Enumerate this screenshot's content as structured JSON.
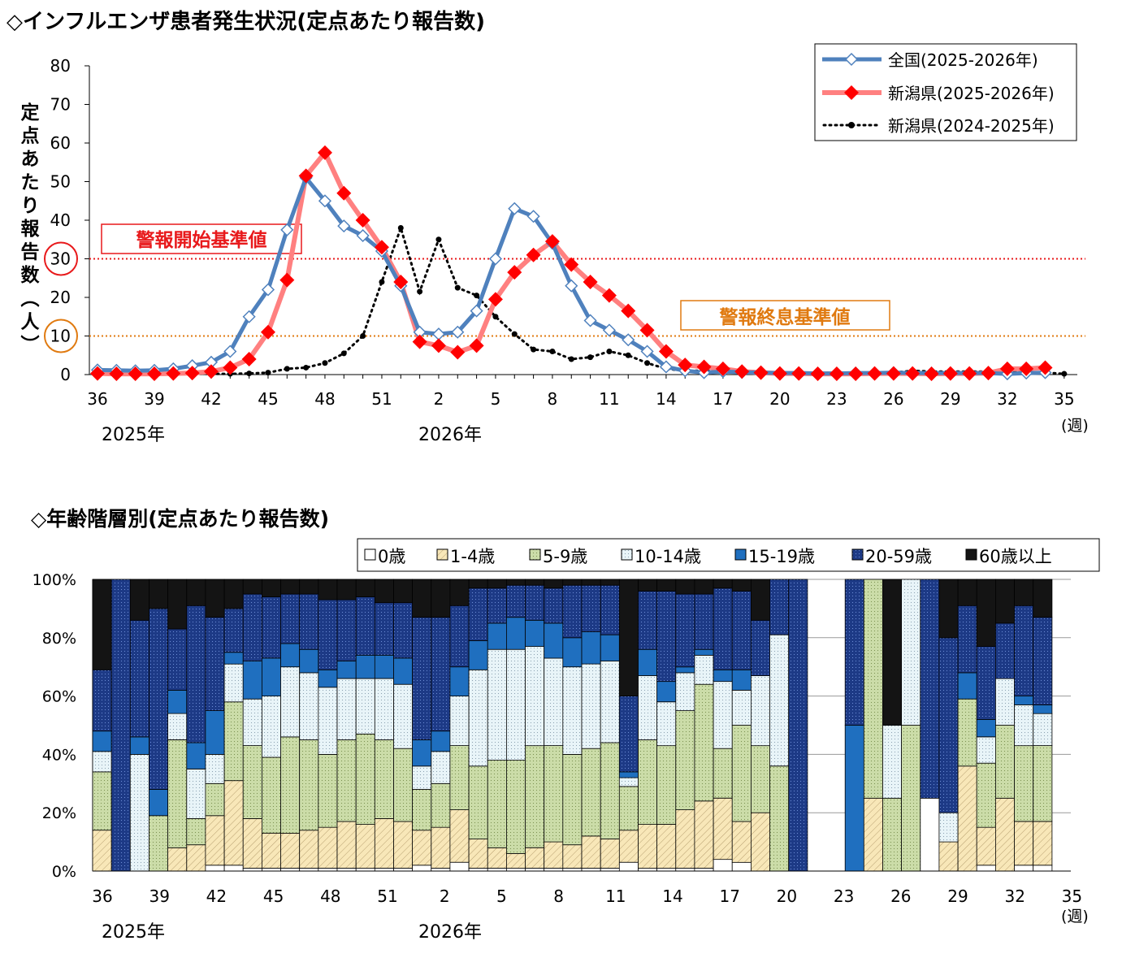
{
  "titles": {
    "top": "◇インフルエンザ患者発生状況(定点あたり報告数)",
    "bottom": "◇年齢階層別(定点あたり報告数)"
  },
  "chart_data": [
    {
      "type": "line",
      "ylabel": "定点あたり報告数(人)",
      "xunit": "(週)",
      "ylim": [
        0,
        80
      ],
      "yticks": [
        0,
        10,
        20,
        30,
        40,
        50,
        60,
        70,
        80
      ],
      "xtick_labels": [
        "36",
        "39",
        "42",
        "45",
        "48",
        "51",
        "2",
        "5",
        "8",
        "11",
        "14",
        "17",
        "20",
        "23",
        "26",
        "29",
        "32",
        "35"
      ],
      "year_labels": [
        "2025年",
        "2026年"
      ],
      "weeks": [
        "36",
        "37",
        "38",
        "39",
        "40",
        "41",
        "42",
        "43",
        "44",
        "45",
        "46",
        "47",
        "48",
        "49",
        "50",
        "51",
        "52",
        "1",
        "2",
        "3",
        "4",
        "5",
        "6",
        "7",
        "8",
        "9",
        "10",
        "11",
        "12",
        "13",
        "14",
        "15",
        "16",
        "17",
        "18",
        "19",
        "20",
        "21",
        "22",
        "23",
        "24",
        "25",
        "26",
        "27",
        "28",
        "29",
        "30",
        "31",
        "32",
        "33",
        "34",
        "35"
      ],
      "thresholds": [
        {
          "label": "警報開始基準値",
          "value": 30,
          "color": "#e8191b"
        },
        {
          "label": "警報終息基準値",
          "value": 10,
          "color": "#e07a10"
        }
      ],
      "legend": "top-right",
      "series": [
        {
          "name": "全国(2025-2026年)",
          "color": "#4f81bd",
          "values": [
            1.2,
            1.1,
            1.0,
            1.1,
            1.5,
            2.3,
            3.2,
            6.0,
            15.0,
            22.0,
            37.5,
            51.0,
            45.0,
            38.5,
            36.0,
            32.0,
            23.0,
            11.0,
            10.5,
            11.0,
            16.5,
            30.0,
            43.0,
            41.0,
            34.0,
            23.0,
            14.0,
            11.5,
            9.0,
            6.0,
            2.0,
            1.0,
            0.5,
            0.8,
            0.6,
            0.5,
            0.4,
            0.4,
            0.3,
            0.3,
            0.4,
            0.4,
            0.5,
            0.4,
            0.4,
            0.4,
            0.4,
            0.4,
            0.2,
            0.4,
            0.5,
            null
          ]
        },
        {
          "name": "新潟県(2025-2026年)",
          "color": "#ff3030",
          "values": [
            0.3,
            0.2,
            0.2,
            0.2,
            0.3,
            0.4,
            0.8,
            1.8,
            4.0,
            11.0,
            24.5,
            51.5,
            57.5,
            47.0,
            40.0,
            33.0,
            24.0,
            8.5,
            7.5,
            5.8,
            7.5,
            19.5,
            26.5,
            31.0,
            34.5,
            28.5,
            24.0,
            20.5,
            16.5,
            11.5,
            6.0,
            2.5,
            2.0,
            1.5,
            0.8,
            0.5,
            0.3,
            0.3,
            0.2,
            0.2,
            0.2,
            0.3,
            0.3,
            0.3,
            0.2,
            0.3,
            0.3,
            0.4,
            1.5,
            1.5,
            1.8,
            null
          ]
        },
        {
          "name": "新潟県(2024-2025年)",
          "color": "#000000",
          "values": [
            0.2,
            0.1,
            0.1,
            0.1,
            0.1,
            0.2,
            0.2,
            0.2,
            0.3,
            0.5,
            1.5,
            1.8,
            3.0,
            5.5,
            10.0,
            24.0,
            38.0,
            21.5,
            35.0,
            22.5,
            20.5,
            15.0,
            10.5,
            6.5,
            6.0,
            4.0,
            4.5,
            6.0,
            5.0,
            3.0,
            1.5,
            1.0,
            1.0,
            1.0,
            1.0,
            0.8,
            0.5,
            0.5,
            0.5,
            0.5,
            0.5,
            0.5,
            0.5,
            1.0,
            0.8,
            0.8,
            0.8,
            0.8,
            1.0,
            0.8,
            0.5,
            0.2
          ]
        }
      ]
    },
    {
      "type": "bar",
      "stacked": true,
      "ylim": [
        0,
        100
      ],
      "yticks": [
        "0%",
        "20%",
        "40%",
        "60%",
        "80%",
        "100%"
      ],
      "xtick_labels": [
        "36",
        "39",
        "42",
        "45",
        "48",
        "51",
        "2",
        "5",
        "8",
        "11",
        "14",
        "17",
        "20",
        "23",
        "26",
        "29",
        "32",
        "35"
      ],
      "year_labels": [
        "2025年",
        "2026年"
      ],
      "xunit": "(週)",
      "legend": "top",
      "series_names": [
        "0歳",
        "1-4歳",
        "5-9歳",
        "10-14歳",
        "15-19歳",
        "20-59歳",
        "60歳以上"
      ],
      "colors": [
        "#ffffff",
        "#f8e7b8",
        "#cbdca8",
        "#e8f4f8",
        "#1f6fbf",
        "#1d3a86",
        "#141414"
      ],
      "bars": [
        [
          0,
          14,
          20,
          7,
          7,
          21,
          31
        ],
        [
          0,
          0,
          0,
          0,
          0,
          100,
          0
        ],
        [
          0,
          0,
          0,
          40,
          6,
          40,
          14
        ],
        [
          0,
          0,
          19,
          0,
          9,
          62,
          10
        ],
        [
          0,
          8,
          37,
          9,
          8,
          21,
          17
        ],
        [
          0,
          9,
          9,
          17,
          9,
          47,
          9
        ],
        [
          2,
          17,
          11,
          10,
          15,
          32,
          13
        ],
        [
          2,
          29,
          27,
          13,
          4,
          15,
          10
        ],
        [
          1,
          17,
          25,
          16,
          13,
          23,
          5
        ],
        [
          1,
          12,
          26,
          21,
          13,
          21,
          6
        ],
        [
          1,
          12,
          33,
          24,
          8,
          17,
          5
        ],
        [
          1,
          13,
          31,
          23,
          8,
          19,
          5
        ],
        [
          1,
          14,
          25,
          23,
          6,
          24,
          7
        ],
        [
          1,
          16,
          28,
          21,
          6,
          21,
          7
        ],
        [
          1,
          15,
          31,
          19,
          8,
          20,
          6
        ],
        [
          1,
          17,
          27,
          21,
          8,
          18,
          8
        ],
        [
          1,
          16,
          25,
          22,
          9,
          19,
          8
        ],
        [
          2,
          12,
          14,
          8,
          9,
          42,
          13
        ],
        [
          1,
          14,
          15,
          11,
          7,
          39,
          13
        ],
        [
          3,
          18,
          22,
          17,
          10,
          21,
          9
        ],
        [
          1,
          10,
          25,
          33,
          10,
          18,
          3
        ],
        [
          1,
          7,
          30,
          38,
          9,
          12,
          3
        ],
        [
          1,
          5,
          32,
          38,
          11,
          11,
          2
        ],
        [
          1,
          7,
          35,
          34,
          9,
          12,
          2
        ],
        [
          1,
          9,
          33,
          30,
          12,
          12,
          3
        ],
        [
          1,
          8,
          31,
          30,
          10,
          18,
          2
        ],
        [
          1,
          11,
          30,
          29,
          11,
          16,
          2
        ],
        [
          1,
          10,
          33,
          28,
          9,
          17,
          2
        ],
        [
          3,
          11,
          15,
          3,
          2,
          26,
          40
        ],
        [
          1,
          15,
          29,
          22,
          9,
          20,
          4
        ],
        [
          1,
          15,
          27,
          15,
          7,
          31,
          4
        ],
        [
          1,
          20,
          34,
          13,
          2,
          25,
          5
        ],
        [
          1,
          23,
          40,
          10,
          2,
          19,
          5
        ],
        [
          4,
          21,
          17,
          23,
          4,
          28,
          3
        ],
        [
          3,
          14,
          33,
          12,
          7,
          27,
          4
        ],
        [
          0,
          20,
          23,
          24,
          0,
          19,
          14
        ],
        [
          0,
          0,
          36,
          45,
          0,
          19,
          0
        ],
        [
          0,
          0,
          0,
          0,
          0,
          100,
          0
        ],
        [
          0,
          0,
          0,
          0,
          0,
          0,
          0
        ],
        [
          0,
          0,
          0,
          0,
          0,
          0,
          0
        ],
        [
          0,
          0,
          0,
          0,
          50,
          50,
          0
        ],
        [
          0,
          25,
          75,
          0,
          0,
          0,
          0
        ],
        [
          0,
          0,
          25,
          25,
          0,
          0,
          50
        ],
        [
          0,
          0,
          50,
          50,
          0,
          0,
          0
        ],
        [
          25,
          0,
          0,
          0,
          0,
          75,
          0
        ],
        [
          0,
          10,
          0,
          10,
          0,
          60,
          20
        ],
        [
          0,
          36,
          23,
          0,
          9,
          23,
          9
        ],
        [
          2,
          13,
          22,
          9,
          6,
          25,
          23
        ],
        [
          0,
          25,
          25,
          16,
          0,
          19,
          15
        ],
        [
          2,
          15,
          26,
          14,
          3,
          31,
          9
        ],
        [
          2,
          15,
          26,
          11,
          3,
          30,
          13
        ]
      ]
    }
  ]
}
